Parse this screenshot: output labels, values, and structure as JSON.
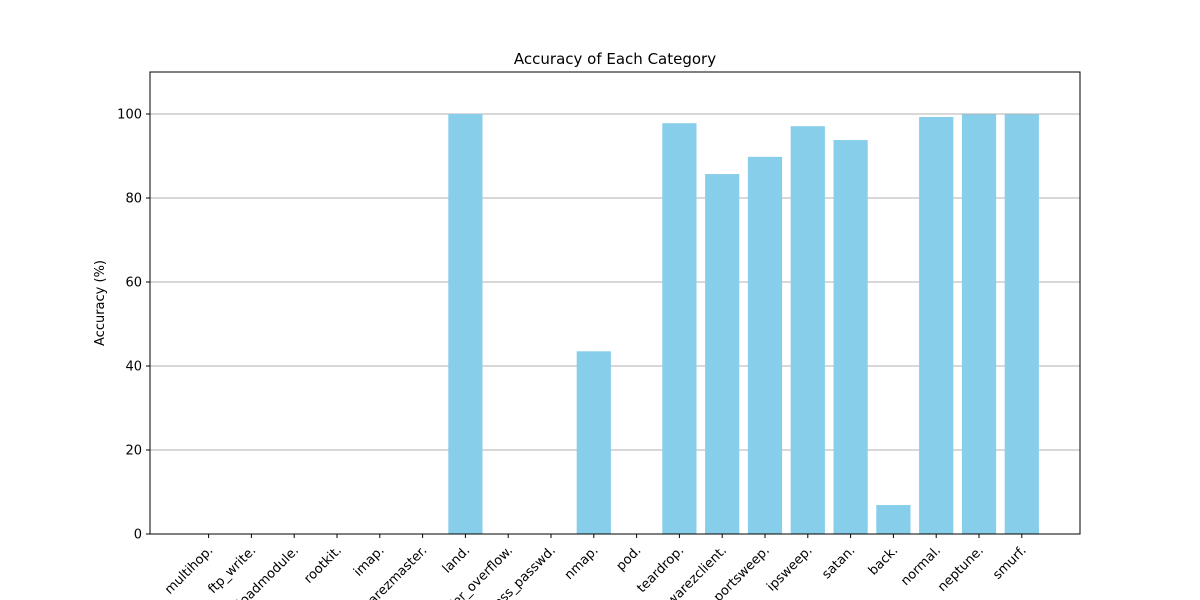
{
  "chart_data": {
    "type": "bar",
    "title": "Accuracy of Each Category",
    "xlabel": "",
    "ylabel": "Accuracy (%)",
    "ylim": [
      0,
      110
    ],
    "yticks": [
      0,
      20,
      40,
      60,
      80,
      100
    ],
    "grid": "y-only",
    "bar_color": "#87ceeb",
    "categories": [
      "multihop.",
      "ftp_write.",
      "loadmodule.",
      "rootkit.",
      "imap.",
      "warezmaster.",
      "land.",
      "buffer_overflow.",
      "guess_passwd.",
      "nmap.",
      "pod.",
      "teardrop.",
      "warezclient.",
      "portsweep.",
      "ipsweep.",
      "satan.",
      "back.",
      "normal.",
      "neptune.",
      "smurf."
    ],
    "values": [
      0,
      0,
      0,
      0,
      0,
      0,
      100,
      0,
      0,
      43.5,
      0,
      97.8,
      85.7,
      89.8,
      97.1,
      93.8,
      6.9,
      99.3,
      99.9,
      99.9
    ]
  }
}
